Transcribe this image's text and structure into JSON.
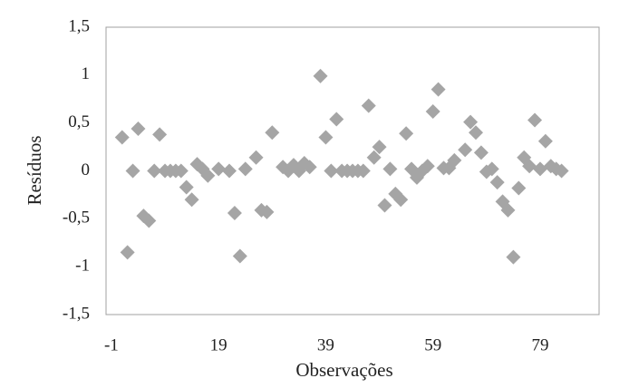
{
  "chart_data": {
    "type": "scatter",
    "x_label": "Observações",
    "y_label": "Resíduos",
    "x": [
      1,
      2,
      3,
      4,
      5,
      6,
      7,
      8,
      9,
      10,
      11,
      12,
      13,
      14,
      15,
      16,
      17,
      19,
      21,
      22,
      23,
      24,
      26,
      27,
      28,
      29,
      31,
      32,
      33,
      34,
      35,
      36,
      38,
      39,
      40,
      41,
      42,
      43,
      44,
      45,
      46,
      47,
      48,
      49,
      50,
      51,
      52,
      53,
      54,
      55,
      56,
      57,
      58,
      59,
      60,
      61,
      62,
      63,
      65,
      66,
      67,
      68,
      69,
      70,
      71,
      72,
      73,
      74,
      75,
      76,
      77,
      78,
      79,
      80,
      81,
      82,
      83
    ],
    "values": [
      0.35,
      -0.85,
      0,
      0.44,
      -0.47,
      -0.52,
      0,
      0.38,
      0,
      0,
      0,
      0,
      -0.17,
      -0.3,
      0.07,
      0.02,
      -0.05,
      0.02,
      0,
      -0.44,
      -0.89,
      0.02,
      0.14,
      -0.41,
      -0.43,
      0.4,
      0.04,
      0,
      0.06,
      0,
      0.08,
      0.04,
      0.99,
      0.35,
      0,
      0.54,
      0,
      0,
      0,
      0,
      0,
      0.68,
      0.14,
      0.25,
      -0.36,
      0.02,
      -0.24,
      -0.3,
      0.39,
      0.02,
      -0.07,
      0,
      0.05,
      0.62,
      0.85,
      0.03,
      0.03,
      0.11,
      0.22,
      0.51,
      0.4,
      0.19,
      -0.01,
      0.02,
      -0.12,
      -0.32,
      -0.41,
      -0.9,
      -0.18,
      0.14,
      0.05,
      0.53,
      0.02,
      0.31,
      0.05,
      0.02,
      0
    ],
    "color": "#a5a5a5",
    "xlim": [
      -2,
      90
    ],
    "xticks": [
      -1,
      19,
      39,
      59,
      79
    ],
    "ylim": [
      -1.5,
      1.5
    ],
    "yticks": [
      {
        "value": -1.5,
        "label": "-1,5"
      },
      -1,
      {
        "value": -0.5,
        "label": "-0,5"
      },
      0,
      {
        "value": 0.5,
        "label": "0,5"
      },
      1,
      {
        "value": 1.5,
        "label": "1,5"
      }
    ],
    "grid": false
  }
}
